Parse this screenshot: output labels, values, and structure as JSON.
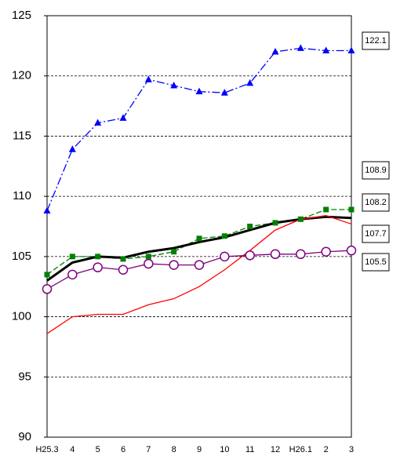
{
  "chart_data": {
    "type": "line",
    "categories": [
      "H25.3",
      "4",
      "5",
      "6",
      "7",
      "8",
      "9",
      "10",
      "11",
      "12",
      "H26.1",
      "2",
      "3"
    ],
    "ylim": [
      90,
      125
    ],
    "yticks": [
      90,
      95,
      100,
      105,
      110,
      115,
      120,
      125
    ],
    "grid": true,
    "series": [
      {
        "color": "#0000ff",
        "line_style": "dashdot",
        "marker": "triangle",
        "values": [
          108.8,
          113.9,
          116.1,
          116.5,
          119.7,
          119.2,
          118.7,
          118.6,
          119.4,
          122.0,
          122.3,
          122.1,
          122.1
        ]
      },
      {
        "color": "#008000",
        "line_style": "dashed",
        "marker": "square",
        "values": [
          103.5,
          105.0,
          105.0,
          104.8,
          105.0,
          105.4,
          106.5,
          106.7,
          107.5,
          107.8,
          108.1,
          108.9,
          108.9
        ]
      },
      {
        "color": "#000000",
        "line_style": "bold",
        "marker": "none",
        "values": [
          103.0,
          104.5,
          105.0,
          104.9,
          105.4,
          105.7,
          106.2,
          106.6,
          107.2,
          107.8,
          108.1,
          108.3,
          108.2
        ]
      },
      {
        "color": "#ff0000",
        "line_style": "solid",
        "marker": "none",
        "values": [
          98.6,
          100.0,
          100.2,
          100.2,
          101.0,
          101.5,
          102.5,
          103.9,
          105.5,
          107.2,
          108.1,
          108.4,
          107.7
        ]
      },
      {
        "color": "#800080",
        "line_style": "solid",
        "marker": "circle",
        "values": [
          102.3,
          103.5,
          104.1,
          103.9,
          104.4,
          104.3,
          104.3,
          105.0,
          105.1,
          105.2,
          105.2,
          105.4,
          105.5
        ]
      }
    ]
  }
}
